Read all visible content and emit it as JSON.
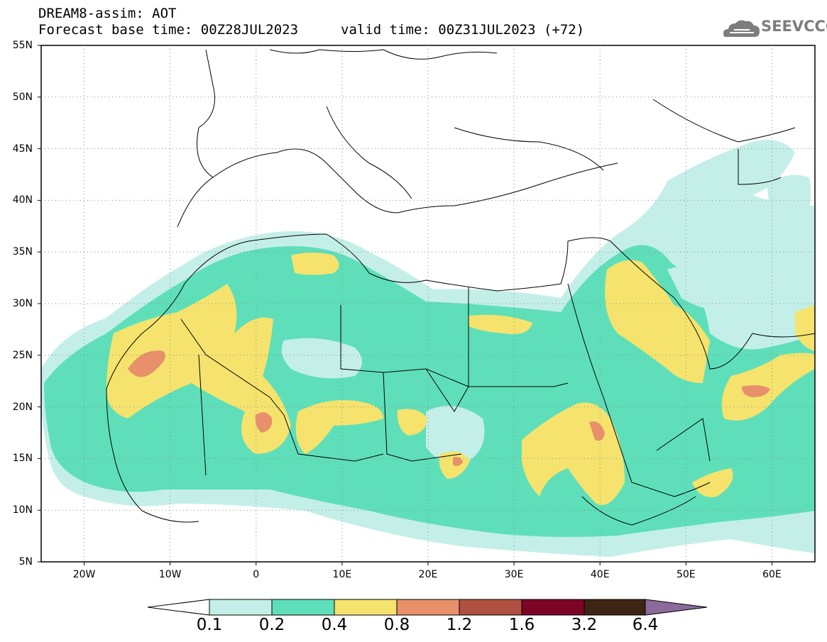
{
  "header": {
    "title_line1": "DREAM8-assim: AOT",
    "title_line2": "Forecast base time: 00Z28JUL2023",
    "title_line3": "valid time: 00Z31JUL2023 (+72)"
  },
  "logo": {
    "text": "SEEVCCC",
    "icon": "cloud-icon",
    "color": "#7d7d7d"
  },
  "map": {
    "lon_range": [
      -25,
      65
    ],
    "lat_range": [
      5,
      55
    ],
    "lat_ticks": [
      {
        "value": 55,
        "label": "55N"
      },
      {
        "value": 50,
        "label": "50N"
      },
      {
        "value": 45,
        "label": "45N"
      },
      {
        "value": 40,
        "label": "40N"
      },
      {
        "value": 35,
        "label": "35N"
      },
      {
        "value": 30,
        "label": "30N"
      },
      {
        "value": 25,
        "label": "25N"
      },
      {
        "value": 20,
        "label": "20N"
      },
      {
        "value": 15,
        "label": "15N"
      },
      {
        "value": 10,
        "label": "10N"
      },
      {
        "value": 5,
        "label": "5N"
      }
    ],
    "lon_ticks": [
      {
        "value": -20,
        "label": "20W"
      },
      {
        "value": -10,
        "label": "10W"
      },
      {
        "value": 0,
        "label": "0"
      },
      {
        "value": 10,
        "label": "10E"
      },
      {
        "value": 20,
        "label": "20E"
      },
      {
        "value": 30,
        "label": "30E"
      },
      {
        "value": 40,
        "label": "40E"
      },
      {
        "value": 50,
        "label": "50E"
      },
      {
        "value": 60,
        "label": "60E"
      }
    ]
  },
  "colorbar": {
    "labels": [
      "0.1",
      "0.2",
      "0.4",
      "0.8",
      "1.2",
      "1.6",
      "3.2",
      "6.4"
    ],
    "colors": [
      "#ffffff",
      "#c4efe8",
      "#5fdfb9",
      "#f5e36e",
      "#e8906a",
      "#b05040",
      "#7c0526",
      "#3e2412",
      "#8c6a9c"
    ]
  }
}
